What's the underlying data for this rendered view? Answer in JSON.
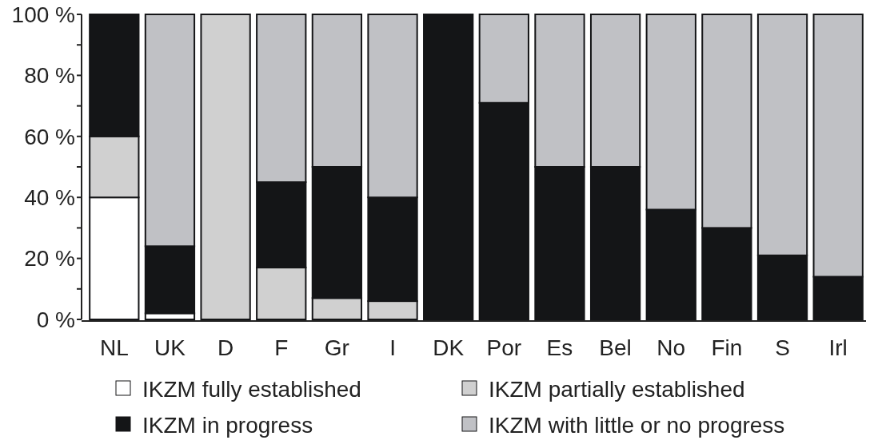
{
  "chart_data": {
    "type": "bar",
    "stacked": true,
    "categories": [
      "NL",
      "UK",
      "D",
      "F",
      "Gr",
      "I",
      "DK",
      "Por",
      "Es",
      "Bel",
      "No",
      "Fin",
      "S",
      "Irl"
    ],
    "series": [
      {
        "name": "IKZM fully established",
        "color": "#ffffff",
        "values": [
          40,
          2,
          0,
          0,
          0,
          0,
          0,
          0,
          0,
          0,
          0,
          0,
          0,
          0
        ]
      },
      {
        "name": "IKZM partially established",
        "color": "#d0d0d0",
        "values": [
          20,
          0,
          100,
          17,
          7,
          6,
          0,
          0,
          0,
          0,
          0,
          0,
          0,
          0
        ]
      },
      {
        "name": "IKZM in progress",
        "color": "#141517",
        "values": [
          40,
          22,
          0,
          28,
          43,
          34,
          100,
          71,
          50,
          50,
          36,
          30,
          21,
          14
        ]
      },
      {
        "name": "IKZM with little or no progress",
        "color": "#c0c1c5",
        "values": [
          0,
          76,
          0,
          55,
          50,
          60,
          0,
          29,
          50,
          50,
          64,
          70,
          79,
          86
        ]
      }
    ],
    "ylim": [
      0,
      100
    ],
    "yticks": [
      {
        "value": 0,
        "label": "0 %"
      },
      {
        "value": 10,
        "label": null
      },
      {
        "value": 20,
        "label": "20 %"
      },
      {
        "value": 30,
        "label": null
      },
      {
        "value": 40,
        "label": "40 %"
      },
      {
        "value": 50,
        "label": null
      },
      {
        "value": 60,
        "label": "60 %"
      },
      {
        "value": 70,
        "label": null
      },
      {
        "value": 80,
        "label": "80 %"
      },
      {
        "value": 90,
        "label": null
      },
      {
        "value": 100,
        "label": "100 %"
      }
    ],
    "grid": false,
    "legend": "bottom"
  }
}
